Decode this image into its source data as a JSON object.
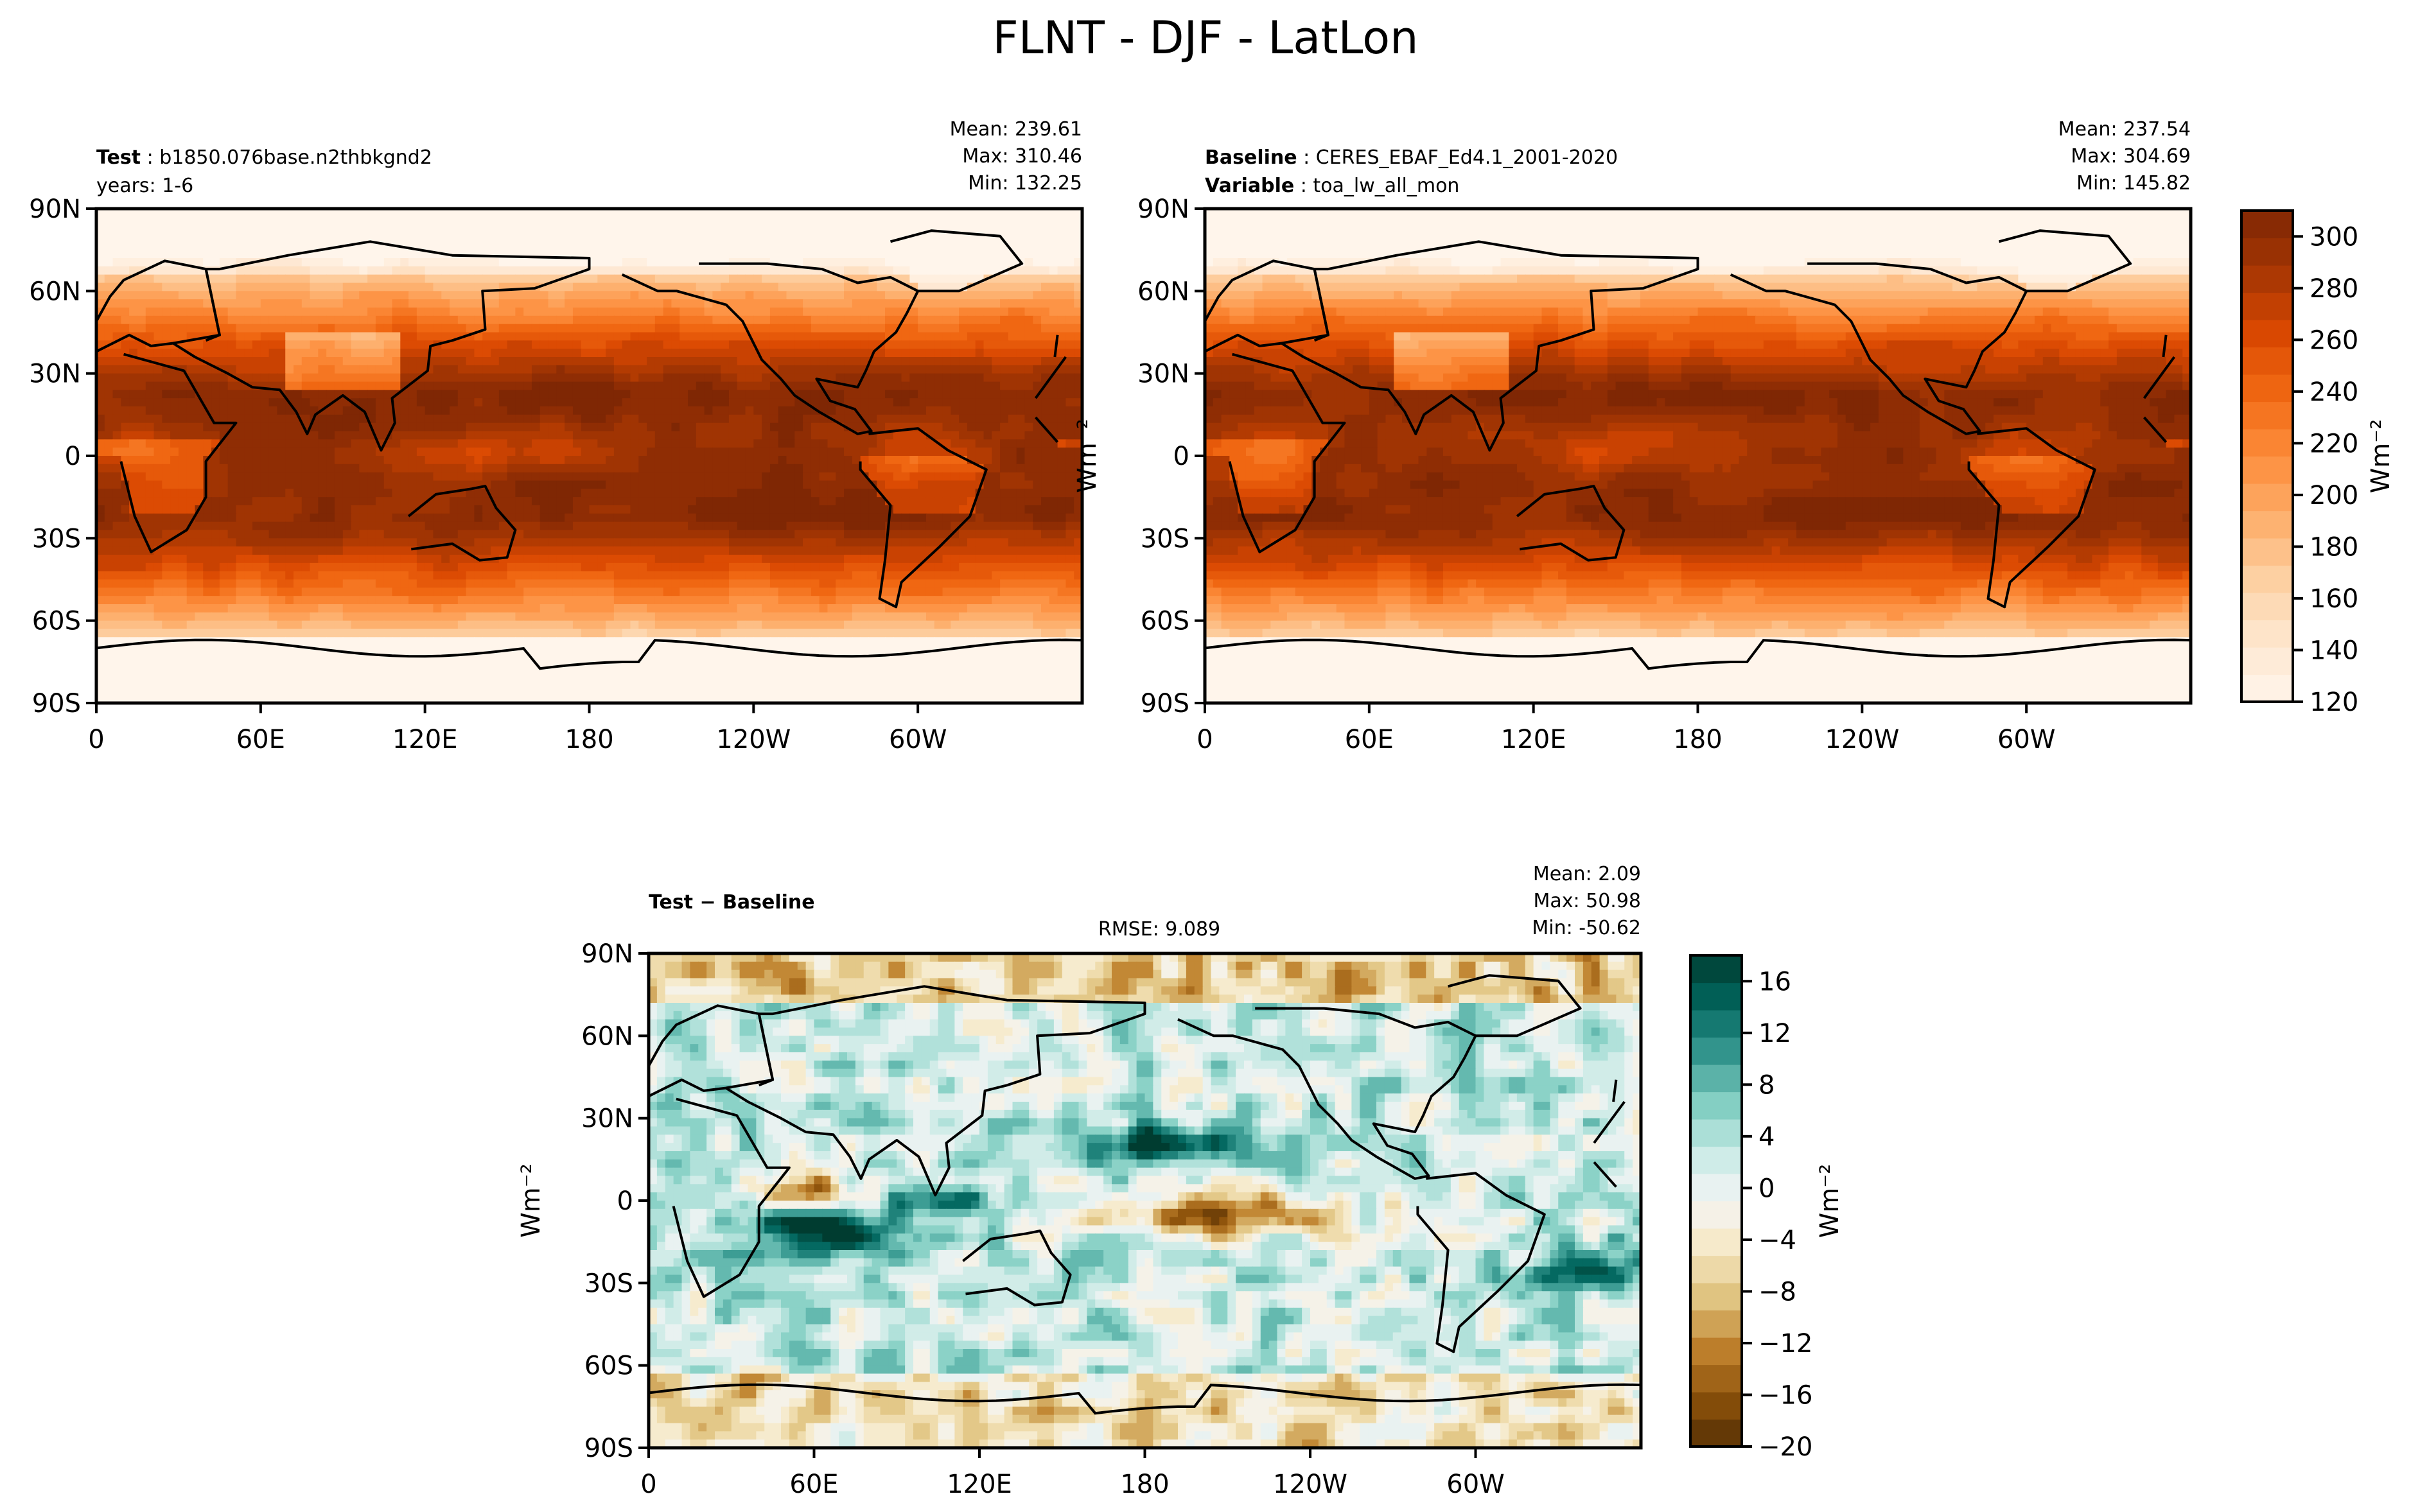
{
  "title": "FLNT - DJF - LatLon",
  "chart_data": [
    {
      "type": "heatmap",
      "panel": "test",
      "header_bold": "Test",
      "header_text": "b1850.076base.n2thbkgnd2",
      "subheader": "years: 1-6",
      "stats": [
        "Mean: 239.61",
        "Max: 310.46",
        "Min: 132.25"
      ],
      "x_ticks": [
        "0",
        "60E",
        "120E",
        "180",
        "120W",
        "60W"
      ],
      "y_ticks": [
        "90N",
        "60N",
        "30N",
        "0",
        "30S",
        "60S",
        "90S"
      ],
      "ylabel": "",
      "colormap": "Oranges",
      "vmin": 120,
      "vmax": 310
    },
    {
      "type": "heatmap",
      "panel": "baseline",
      "header_bold": "Baseline",
      "header_text": "CERES_EBAF_Ed4.1_2001-2020",
      "subheader_bold": "Variable",
      "subheader": "toa_lw_all_mon",
      "stats": [
        "Mean: 237.54",
        "Max: 304.69",
        "Min: 145.82"
      ],
      "x_ticks": [
        "0",
        "60E",
        "120E",
        "180",
        "120W",
        "60W"
      ],
      "y_ticks": [
        "90N",
        "60N",
        "30N",
        "0",
        "30S",
        "60S",
        "90S"
      ],
      "ylabel": "Wm⁻²",
      "colormap": "Oranges",
      "vmin": 120,
      "vmax": 310,
      "colorbar_ticks": [
        "120",
        "140",
        "160",
        "180",
        "200",
        "220",
        "240",
        "260",
        "280",
        "300"
      ],
      "colorbar_label": "Wm⁻²"
    },
    {
      "type": "heatmap",
      "panel": "difference",
      "header_bold": "Test − Baseline",
      "rmse": "RMSE: 9.089",
      "stats": [
        "Mean:  2.09",
        "Max: 50.98",
        "Min: -50.62"
      ],
      "x_ticks": [
        "0",
        "60E",
        "120E",
        "180",
        "120W",
        "60W"
      ],
      "y_ticks": [
        "90N",
        "60N",
        "30N",
        "0",
        "30S",
        "60S",
        "90S"
      ],
      "ylabel": "Wm⁻²",
      "colormap": "BrBG",
      "vmin": -20,
      "vmax": 18,
      "colorbar_ticks": [
        "−20",
        "−16",
        "−12",
        "−8",
        "−4",
        "0",
        "4",
        "8",
        "12",
        "16"
      ],
      "colorbar_label": "Wm⁻²"
    }
  ]
}
